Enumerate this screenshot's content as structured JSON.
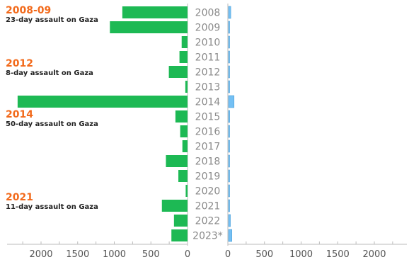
{
  "chart_data": {
    "type": "bar",
    "orientation": "horizontal",
    "categories": [
      "2008",
      "2009",
      "2010",
      "2011",
      "2012",
      "2013",
      "2014",
      "2015",
      "2016",
      "2017",
      "2018",
      "2019",
      "2020",
      "2021",
      "2022",
      "2023*"
    ],
    "series": [
      {
        "color": "#1db954",
        "values": [
          890,
          1060,
          80,
          110,
          255,
          30,
          2320,
          165,
          100,
          70,
          295,
          125,
          25,
          350,
          185,
          220
        ]
      },
      {
        "color": "#74c0f4",
        "values": [
          30,
          5,
          3,
          8,
          5,
          3,
          75,
          15,
          6,
          10,
          8,
          6,
          3,
          8,
          25,
          45
        ]
      }
    ],
    "left_axis": {
      "ticks": [
        2000,
        1500,
        1000,
        500,
        0
      ],
      "max": 2400
    },
    "right_axis": {
      "ticks": [
        0,
        500,
        1000,
        1500,
        2000
      ],
      "max": 2400
    },
    "annotations": [
      {
        "year": "2008-09",
        "description": "23-day assault on Gaza"
      },
      {
        "year": "2012",
        "description": "8-day assault on Gaza"
      },
      {
        "year": "2014",
        "description": "50-day assault on Gaza"
      },
      {
        "year": "2021",
        "description": "11-day assault on Gaza"
      }
    ]
  }
}
